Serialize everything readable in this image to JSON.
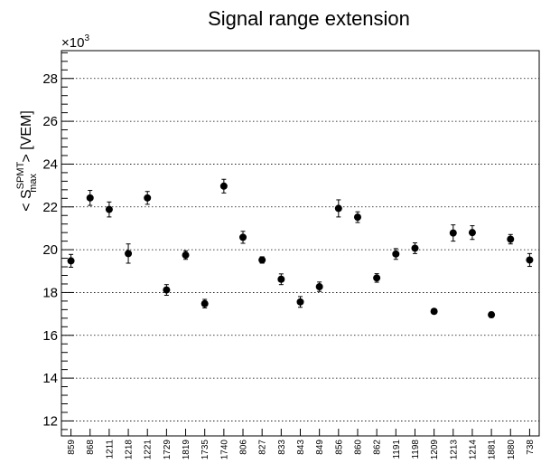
{
  "chart_data": {
    "type": "scatter",
    "title": "Signal range extension",
    "ylabel_prefix": "< S",
    "ylabel_sup": "SPMT",
    "ylabel_sub": "max",
    "ylabel_suffix": " > [VEM]",
    "y_multiplier": "×10",
    "y_multiplier_exp": "3",
    "ylim": [
      11.3,
      29.3
    ],
    "yticks": [
      12,
      14,
      16,
      18,
      20,
      22,
      24,
      26,
      28
    ],
    "grid": true,
    "categories": [
      "859",
      "868",
      "1211",
      "1218",
      "1221",
      "1729",
      "1819",
      "1735",
      "1740",
      "806",
      "827",
      "833",
      "843",
      "849",
      "856",
      "860",
      "862",
      "1191",
      "1198",
      "1209",
      "1213",
      "1214",
      "1881",
      "1880",
      "738"
    ],
    "values": [
      19.48,
      22.42,
      21.88,
      19.82,
      22.42,
      18.12,
      19.75,
      17.48,
      22.97,
      20.58,
      19.52,
      18.62,
      17.56,
      18.27,
      21.93,
      21.52,
      18.68,
      19.8,
      20.07,
      17.12,
      20.78,
      20.8,
      16.96,
      20.49,
      19.52
    ],
    "errors": [
      0.3,
      0.35,
      0.35,
      0.45,
      0.3,
      0.25,
      0.2,
      0.2,
      0.32,
      0.28,
      0.15,
      0.25,
      0.25,
      0.22,
      0.4,
      0.25,
      0.2,
      0.25,
      0.25,
      0.05,
      0.38,
      0.32,
      0.12,
      0.22,
      0.3
    ]
  }
}
